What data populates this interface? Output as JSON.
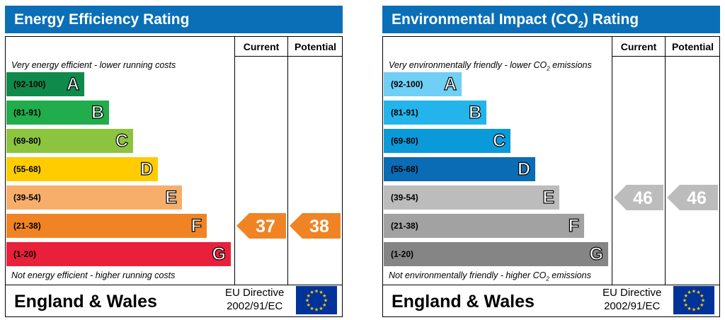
{
  "chart_data": [
    {
      "type": "bar",
      "title": "Energy Efficiency Rating",
      "columns": [
        "Current",
        "Potential"
      ],
      "top_note": "Very energy efficient - lower running costs",
      "bottom_note": "Not energy efficient - higher running costs",
      "bands": [
        {
          "range": "(92-100)",
          "letter": "A",
          "color": "#0f8a4a"
        },
        {
          "range": "(81-91)",
          "letter": "B",
          "color": "#21ad4b"
        },
        {
          "range": "(69-80)",
          "letter": "C",
          "color": "#8cc43f"
        },
        {
          "range": "(55-68)",
          "letter": "D",
          "color": "#ffcc00"
        },
        {
          "range": "(39-54)",
          "letter": "E",
          "color": "#f7ae6a"
        },
        {
          "range": "(21-38)",
          "letter": "F",
          "color": "#f08424"
        },
        {
          "range": "(1-20)",
          "letter": "G",
          "color": "#e9203a"
        }
      ],
      "current": 37,
      "potential": 38,
      "current_color": "#f08424",
      "potential_color": "#f08424",
      "footer": {
        "region": "England & Wales",
        "directive_line1": "EU Directive",
        "directive_line2": "2002/91/EC"
      }
    },
    {
      "type": "bar",
      "title": "Environmental Impact (CO2) Rating",
      "columns": [
        "Current",
        "Potential"
      ],
      "top_note": "Very environmentally friendly - lower CO2 emissions",
      "bottom_note": "Not environmentally friendly - higher CO2 emissions",
      "bands": [
        {
          "range": "(92-100)",
          "letter": "A",
          "color": "#6fcff5"
        },
        {
          "range": "(81-91)",
          "letter": "B",
          "color": "#24b4ec"
        },
        {
          "range": "(69-80)",
          "letter": "C",
          "color": "#0b9ad9"
        },
        {
          "range": "(55-68)",
          "letter": "D",
          "color": "#0a6cb5"
        },
        {
          "range": "(39-54)",
          "letter": "E",
          "color": "#bcbcbc"
        },
        {
          "range": "(21-38)",
          "letter": "F",
          "color": "#a2a2a2"
        },
        {
          "range": "(1-20)",
          "letter": "G",
          "color": "#858585"
        }
      ],
      "current": 46,
      "potential": 46,
      "current_color": "#bcbcbc",
      "potential_color": "#bcbcbc",
      "footer": {
        "region": "England & Wales",
        "directive_line1": "EU Directive",
        "directive_line2": "2002/91/EC"
      }
    }
  ],
  "eu_flag": {
    "icon": "eu-flag-icon",
    "field_color": "#003399",
    "star_color": "#ffcc00"
  }
}
